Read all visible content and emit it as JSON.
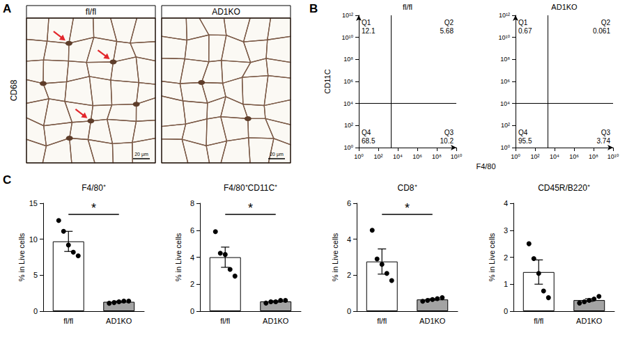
{
  "panel_labels": [
    "A",
    "B",
    "C"
  ],
  "histology": {
    "stain": "CD68",
    "images": [
      "fl/fl",
      "AD1KO"
    ],
    "scale_bar": "20 μm"
  },
  "chart_data": [
    {
      "type": "quadrant",
      "title": "fl/fl",
      "x_label": "F4/80",
      "y_label": "CD11C",
      "log": true,
      "xlim": [
        1,
        10000000000
      ],
      "xticks": [
        {
          "value": 1,
          "label": "10⁰"
        },
        {
          "value": 100,
          "label": "10²"
        },
        {
          "value": 10000,
          "label": "10⁴"
        },
        {
          "value": 1000000,
          "label": "10⁶"
        },
        {
          "value": 100000000,
          "label": "10⁸"
        },
        {
          "value": 10000000000,
          "label": "10¹⁰"
        }
      ],
      "ylim": [
        1,
        1000000000000
      ],
      "yticks": [
        {
          "value": 1,
          "label": "10⁰"
        },
        {
          "value": 100,
          "label": "10²"
        },
        {
          "value": 10000,
          "label": "10⁴"
        },
        {
          "value": 1000000,
          "label": "10⁶"
        },
        {
          "value": 100000000,
          "label": "10⁸"
        },
        {
          "value": 10000000000,
          "label": "10¹⁰"
        },
        {
          "value": 1000000000000,
          "label": "10¹²"
        }
      ],
      "gate": {
        "x": 2000,
        "y": 10000
      },
      "quadrants": [
        {
          "name": "Q1",
          "value": 12.1
        },
        {
          "name": "Q2",
          "value": 5.68
        },
        {
          "name": "Q3",
          "value": 10.2
        },
        {
          "name": "Q4",
          "value": 68.5
        }
      ]
    },
    {
      "type": "quadrant",
      "title": "AD1KO",
      "log": true,
      "xlim": [
        1,
        10000000000
      ],
      "xticks": [
        {
          "value": 1,
          "label": "10⁰"
        },
        {
          "value": 100,
          "label": "10²"
        },
        {
          "value": 10000,
          "label": "10⁴"
        },
        {
          "value": 1000000,
          "label": "10⁶"
        },
        {
          "value": 100000000,
          "label": "10⁸"
        },
        {
          "value": 10000000000,
          "label": "10¹⁰"
        }
      ],
      "ylim": [
        1,
        1000000000000
      ],
      "yticks": [
        {
          "value": 1,
          "label": "10⁰"
        },
        {
          "value": 100,
          "label": "10²"
        },
        {
          "value": 10000,
          "label": "10⁴"
        },
        {
          "value": 1000000,
          "label": "10⁶"
        },
        {
          "value": 100000000,
          "label": "10⁸"
        },
        {
          "value": 10000000000,
          "label": "10¹⁰"
        },
        {
          "value": 1000000000000,
          "label": "10¹²"
        }
      ],
      "gate": {
        "x": 2000,
        "y": 10000
      },
      "quadrants": [
        {
          "name": "Q1",
          "value": 0.67
        },
        {
          "name": "Q2",
          "value": 0.061
        },
        {
          "name": "Q3",
          "value": 3.74
        },
        {
          "name": "Q4",
          "value": 95.5
        }
      ]
    },
    {
      "type": "bar",
      "title": "F4/80⁺",
      "categories": [
        "fl/fl",
        "AD1KO"
      ],
      "values": [
        9.7,
        1.3
      ],
      "errors": [
        1.4,
        0.1
      ],
      "points": [
        [
          12.6,
          11.1,
          9.2,
          8.2,
          7.7
        ],
        [
          1.1,
          1.2,
          1.3,
          1.4,
          1.4
        ]
      ],
      "colors": [
        "#ffffff",
        "#a3a3a3"
      ],
      "y_label": "% in Live cells",
      "ylim": [
        0,
        15
      ],
      "yticks": [
        0,
        5,
        10,
        15
      ],
      "annotation": "*"
    },
    {
      "type": "bar",
      "title": "F4/80⁺CD11C⁺",
      "categories": [
        "fl/fl",
        "AD1KO"
      ],
      "values": [
        4.0,
        0.72
      ],
      "errors": [
        0.75,
        0.05
      ],
      "points": [
        [
          5.9,
          4.3,
          4.2,
          3.1,
          2.6
        ],
        [
          0.6,
          0.7,
          0.7,
          0.8,
          0.8
        ]
      ],
      "colors": [
        "#ffffff",
        "#a3a3a3"
      ],
      "y_label": "% in Live cells",
      "ylim": [
        0,
        8
      ],
      "yticks": [
        0,
        2,
        4,
        6,
        8
      ],
      "annotation": "*"
    },
    {
      "type": "bar",
      "title": "CD8⁺",
      "categories": [
        "fl/fl",
        "AD1KO"
      ],
      "values": [
        2.76,
        0.65
      ],
      "errors": [
        0.7,
        0.04
      ],
      "points": [
        [
          4.5,
          2.9,
          2.6,
          2.1,
          1.7
        ],
        [
          0.55,
          0.6,
          0.65,
          0.7,
          0.75
        ]
      ],
      "colors": [
        "#ffffff",
        "#a3a3a3"
      ],
      "y_label": "% in Live cells",
      "ylim": [
        0,
        6
      ],
      "yticks": [
        0,
        2,
        4,
        6
      ],
      "annotation": "*"
    },
    {
      "type": "bar",
      "title": "CD45R/B220⁺",
      "categories": [
        "fl/fl",
        "AD1KO"
      ],
      "values": [
        1.45,
        0.41
      ],
      "errors": [
        0.45,
        0.05
      ],
      "points": [
        [
          2.5,
          1.95,
          1.4,
          0.75,
          0.5
        ],
        [
          0.3,
          0.35,
          0.4,
          0.45,
          0.55
        ]
      ],
      "colors": [
        "#ffffff",
        "#a3a3a3"
      ],
      "y_label": "% in Live cells",
      "ylim": [
        0,
        4
      ],
      "yticks": [
        0,
        1,
        2,
        3,
        4
      ]
    }
  ]
}
